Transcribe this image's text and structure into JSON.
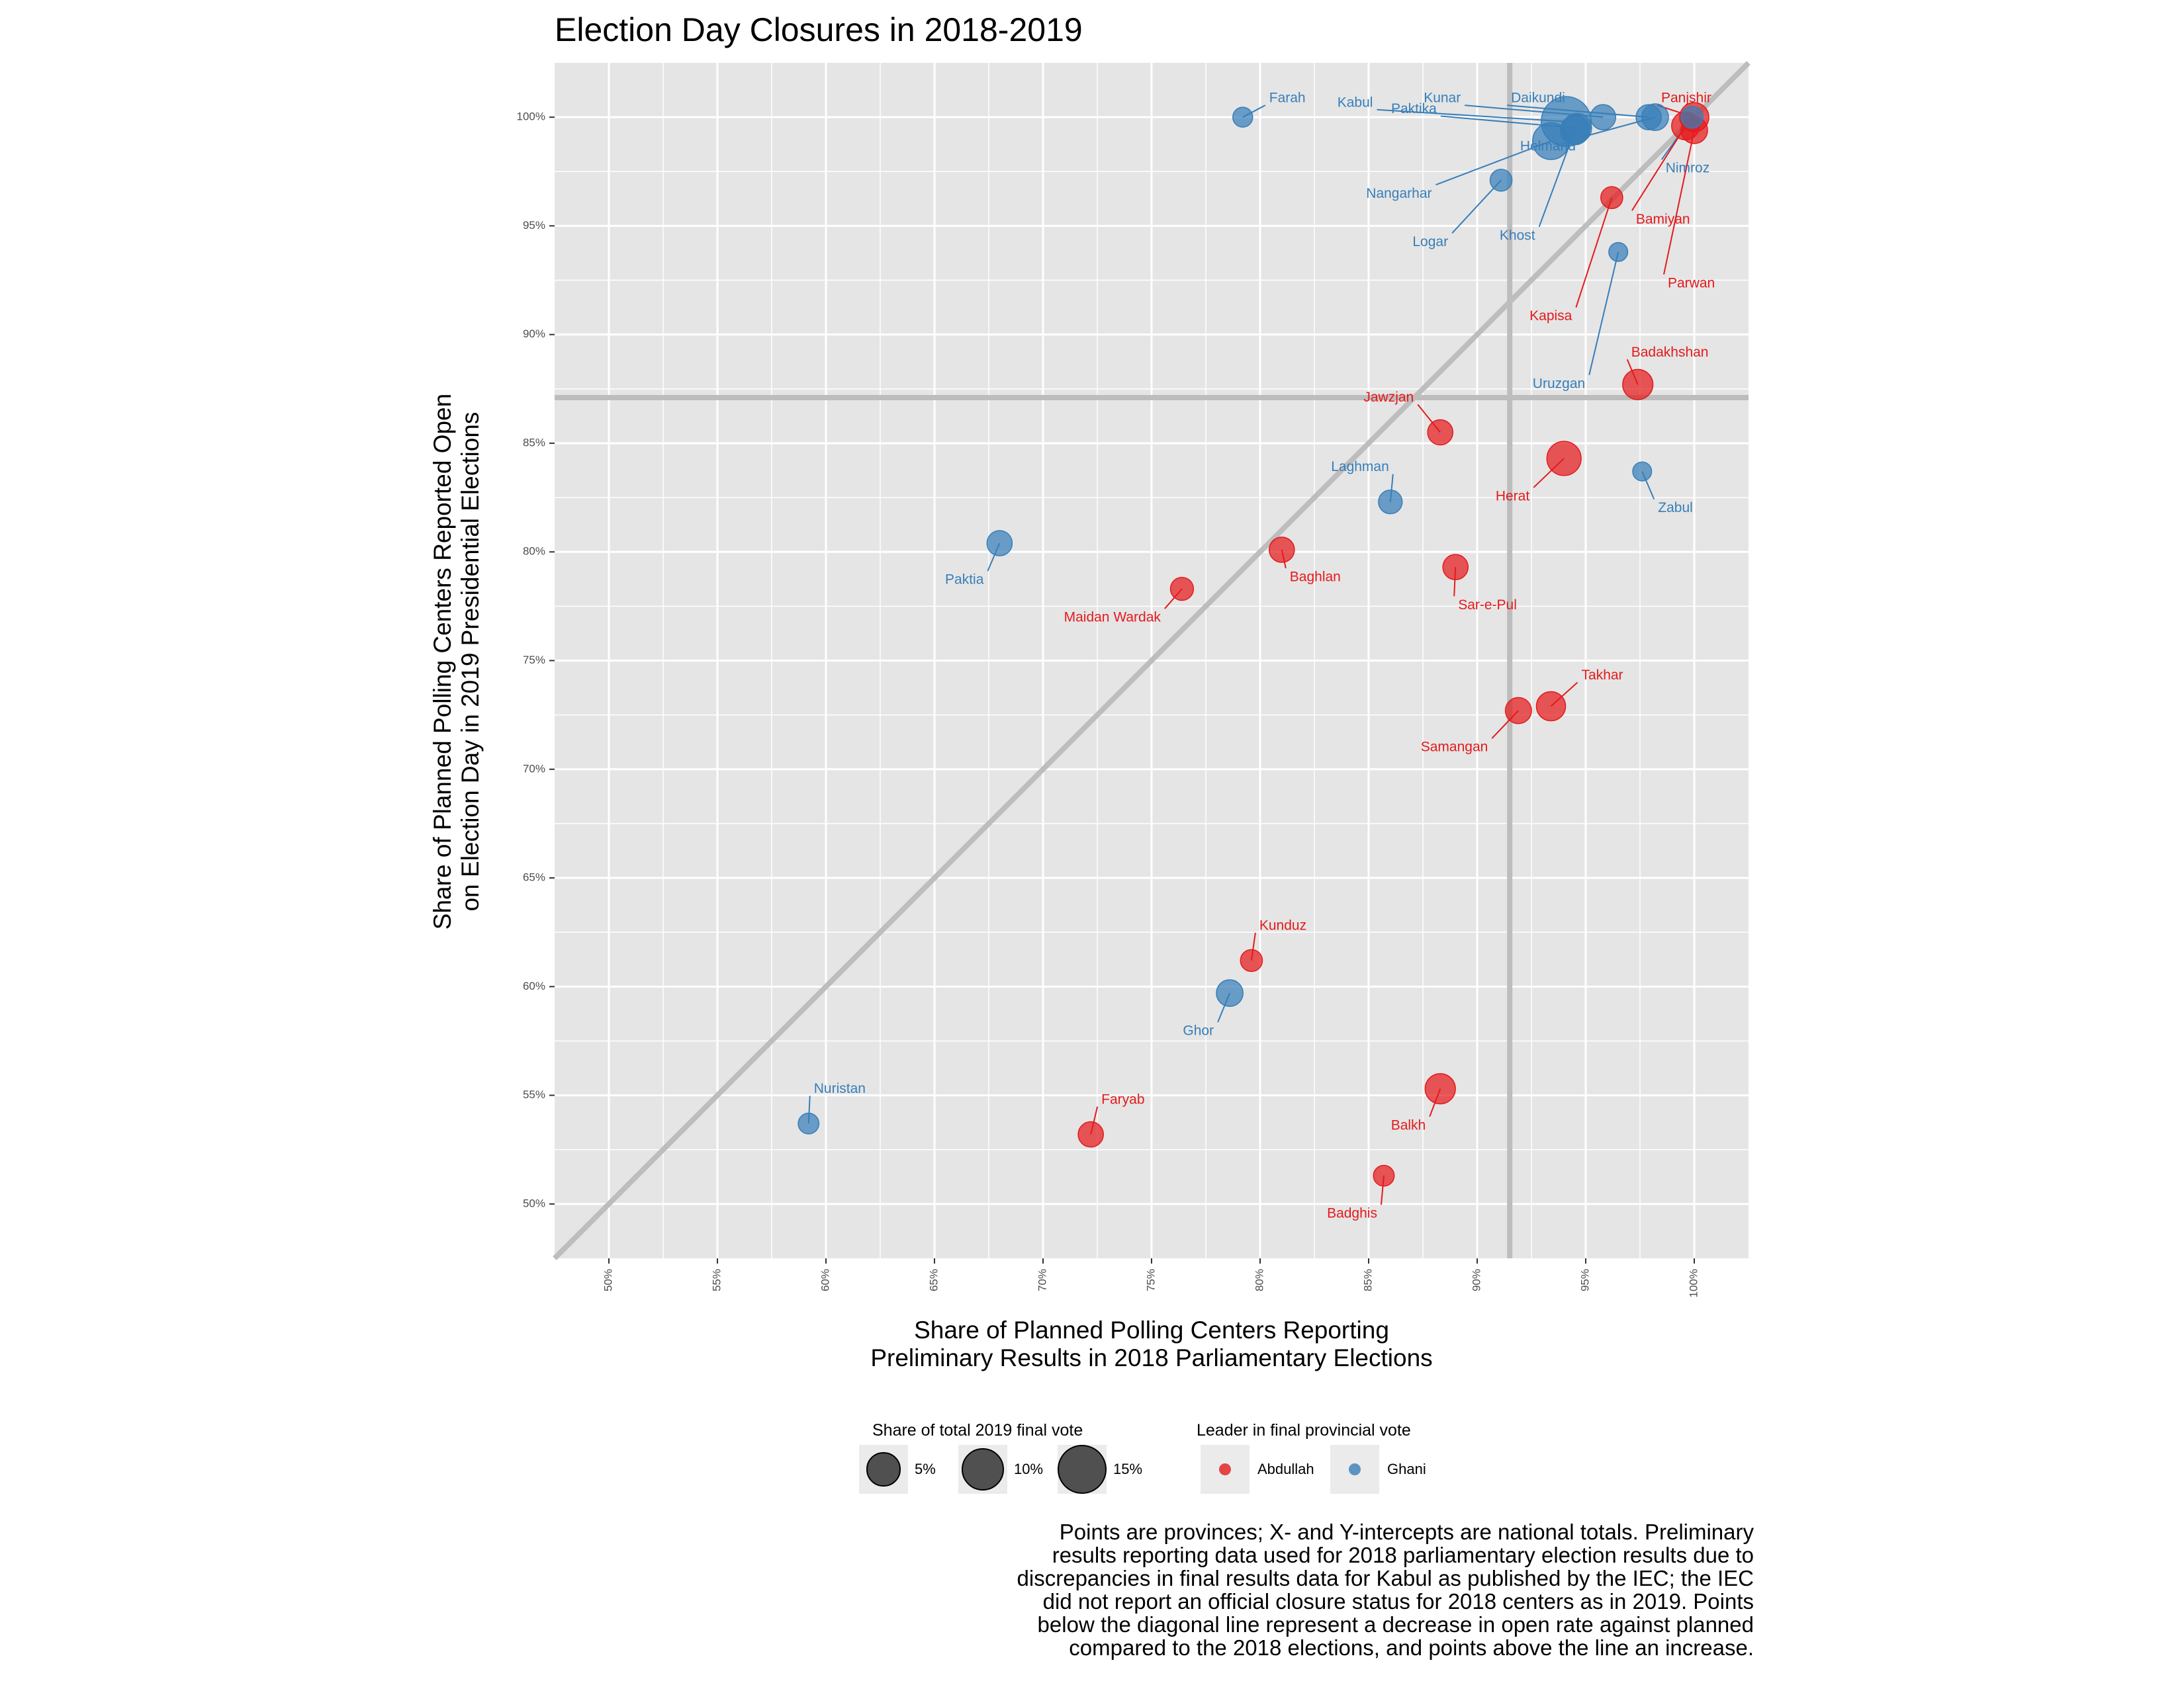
{
  "chart_data": {
    "type": "scatter",
    "title": "Election Day Closures in 2018-2019",
    "xlabel_lines": [
      "Share of Planned Polling Centers Reporting",
      "Preliminary Results in 2018 Parliamentary Elections"
    ],
    "ylabel_lines": [
      "Share of Planned Polling Centers Reported Open",
      "on Election Day in 2019 Presidential Elections"
    ],
    "xlim": [
      47.5,
      102.5
    ],
    "ylim": [
      47.5,
      102.5
    ],
    "x_ticks": [
      "50%",
      "55%",
      "60%",
      "65%",
      "70%",
      "75%",
      "80%",
      "85%",
      "90%",
      "95%",
      "100%"
    ],
    "y_ticks": [
      "50%",
      "55%",
      "60%",
      "65%",
      "70%",
      "75%",
      "80%",
      "85%",
      "90%",
      "95%",
      "100%"
    ],
    "grid": true,
    "national_x": 91.5,
    "national_y": 87.1,
    "diagonal": true,
    "colors": {
      "Abdullah": "#e41a1c",
      "Ghani": "#377eb8",
      "panel": "#e5e5e5",
      "grid": "#ffffff",
      "refline": "#bdbdbd"
    },
    "points": [
      {
        "name": "Farah",
        "x": 79.2,
        "y": 100.0,
        "size": 1.0,
        "leader": "Ghani"
      },
      {
        "name": "Kabul",
        "x": 94.1,
        "y": 99.8,
        "size": 18.0,
        "leader": "Ghani"
      },
      {
        "name": "Paktika",
        "x": 94.6,
        "y": 99.5,
        "size": 4.0,
        "leader": "Ghani"
      },
      {
        "name": "Kunar",
        "x": 95.8,
        "y": 100.0,
        "size": 2.5,
        "leader": "Ghani"
      },
      {
        "name": "Daikundi",
        "x": 97.9,
        "y": 100.0,
        "size": 2.5,
        "leader": "Ghani"
      },
      {
        "name": "Panjshir",
        "x": 100.0,
        "y": 100.0,
        "size": 4.0,
        "leader": "Abdullah"
      },
      {
        "name": "Nangarhar",
        "x": 93.4,
        "y": 98.9,
        "size": 8.0,
        "leader": "Ghani"
      },
      {
        "name": "Helmand",
        "x": 98.2,
        "y": 100.0,
        "size": 3.0,
        "leader": "Ghani"
      },
      {
        "name": "Nimroz",
        "x": 99.9,
        "y": 100.0,
        "size": 1.5,
        "leader": "Ghani"
      },
      {
        "name": "Logar",
        "x": 91.1,
        "y": 97.1,
        "size": 1.5,
        "leader": "Ghani"
      },
      {
        "name": "Khost",
        "x": 94.5,
        "y": 99.4,
        "size": 4.0,
        "leader": "Ghani"
      },
      {
        "name": "Bamiyan",
        "x": 99.6,
        "y": 99.6,
        "size": 3.5,
        "leader": "Abdullah"
      },
      {
        "name": "Parwan",
        "x": 100.0,
        "y": 99.4,
        "size": 3.0,
        "leader": "Abdullah"
      },
      {
        "name": "Kapisa",
        "x": 96.2,
        "y": 96.3,
        "size": 1.5,
        "leader": "Abdullah"
      },
      {
        "name": "Uruzgan",
        "x": 96.5,
        "y": 93.8,
        "size": 0.8,
        "leader": "Ghani"
      },
      {
        "name": "Badakhshan",
        "x": 97.4,
        "y": 87.7,
        "size": 4.5,
        "leader": "Abdullah"
      },
      {
        "name": "Jawzjan",
        "x": 88.3,
        "y": 85.5,
        "size": 2.5,
        "leader": "Abdullah"
      },
      {
        "name": "Herat",
        "x": 94.0,
        "y": 84.3,
        "size": 6.5,
        "leader": "Abdullah"
      },
      {
        "name": "Laghman",
        "x": 86.0,
        "y": 82.3,
        "size": 2.0,
        "leader": "Ghani"
      },
      {
        "name": "Zabul",
        "x": 97.6,
        "y": 83.7,
        "size": 0.8,
        "leader": "Ghani"
      },
      {
        "name": "Paktia",
        "x": 68.0,
        "y": 80.4,
        "size": 2.5,
        "leader": "Ghani"
      },
      {
        "name": "Baghlan",
        "x": 81.0,
        "y": 80.1,
        "size": 2.5,
        "leader": "Abdullah"
      },
      {
        "name": "Maidan Wardak",
        "x": 76.4,
        "y": 78.3,
        "size": 1.8,
        "leader": "Abdullah"
      },
      {
        "name": "Sar-e-Pul",
        "x": 89.0,
        "y": 79.3,
        "size": 2.5,
        "leader": "Abdullah"
      },
      {
        "name": "Takhar",
        "x": 93.4,
        "y": 72.9,
        "size": 4.0,
        "leader": "Abdullah"
      },
      {
        "name": "Samangan",
        "x": 91.9,
        "y": 72.7,
        "size": 2.8,
        "leader": "Abdullah"
      },
      {
        "name": "Kunduz",
        "x": 79.6,
        "y": 61.2,
        "size": 1.5,
        "leader": "Abdullah"
      },
      {
        "name": "Ghor",
        "x": 78.6,
        "y": 59.7,
        "size": 3.0,
        "leader": "Ghani"
      },
      {
        "name": "Nuristan",
        "x": 59.2,
        "y": 53.7,
        "size": 1.2,
        "leader": "Ghani"
      },
      {
        "name": "Faryab",
        "x": 72.2,
        "y": 53.2,
        "size": 2.5,
        "leader": "Abdullah"
      },
      {
        "name": "Balkh",
        "x": 88.3,
        "y": 55.3,
        "size": 4.5,
        "leader": "Abdullah"
      },
      {
        "name": "Badghis",
        "x": 85.7,
        "y": 51.3,
        "size": 1.2,
        "leader": "Abdullah"
      }
    ],
    "legend": {
      "size_title": "Share of total 2019 final vote",
      "size_items": [
        {
          "label": "5%",
          "size": 5
        },
        {
          "label": "10%",
          "size": 10
        },
        {
          "label": "15%",
          "size": 15
        }
      ],
      "color_title": "Leader in final provincial vote",
      "color_items": [
        {
          "label": "Abdullah",
          "leader": "Abdullah"
        },
        {
          "label": "Ghani",
          "leader": "Ghani"
        }
      ]
    },
    "caption_lines": [
      "Points are provinces; X- and Y-intercepts are national totals. Preliminary",
      "results reporting data used for 2018 parliamentary election results due to",
      "discrepancies in final results data for Kabul as published by the IEC; the IEC",
      "did not report an official closure status for 2018 centers as in 2019. Points",
      "below the diagonal line represent a decrease in open rate against planned",
      "compared to the 2018 elections, and points above the line an increase."
    ]
  }
}
